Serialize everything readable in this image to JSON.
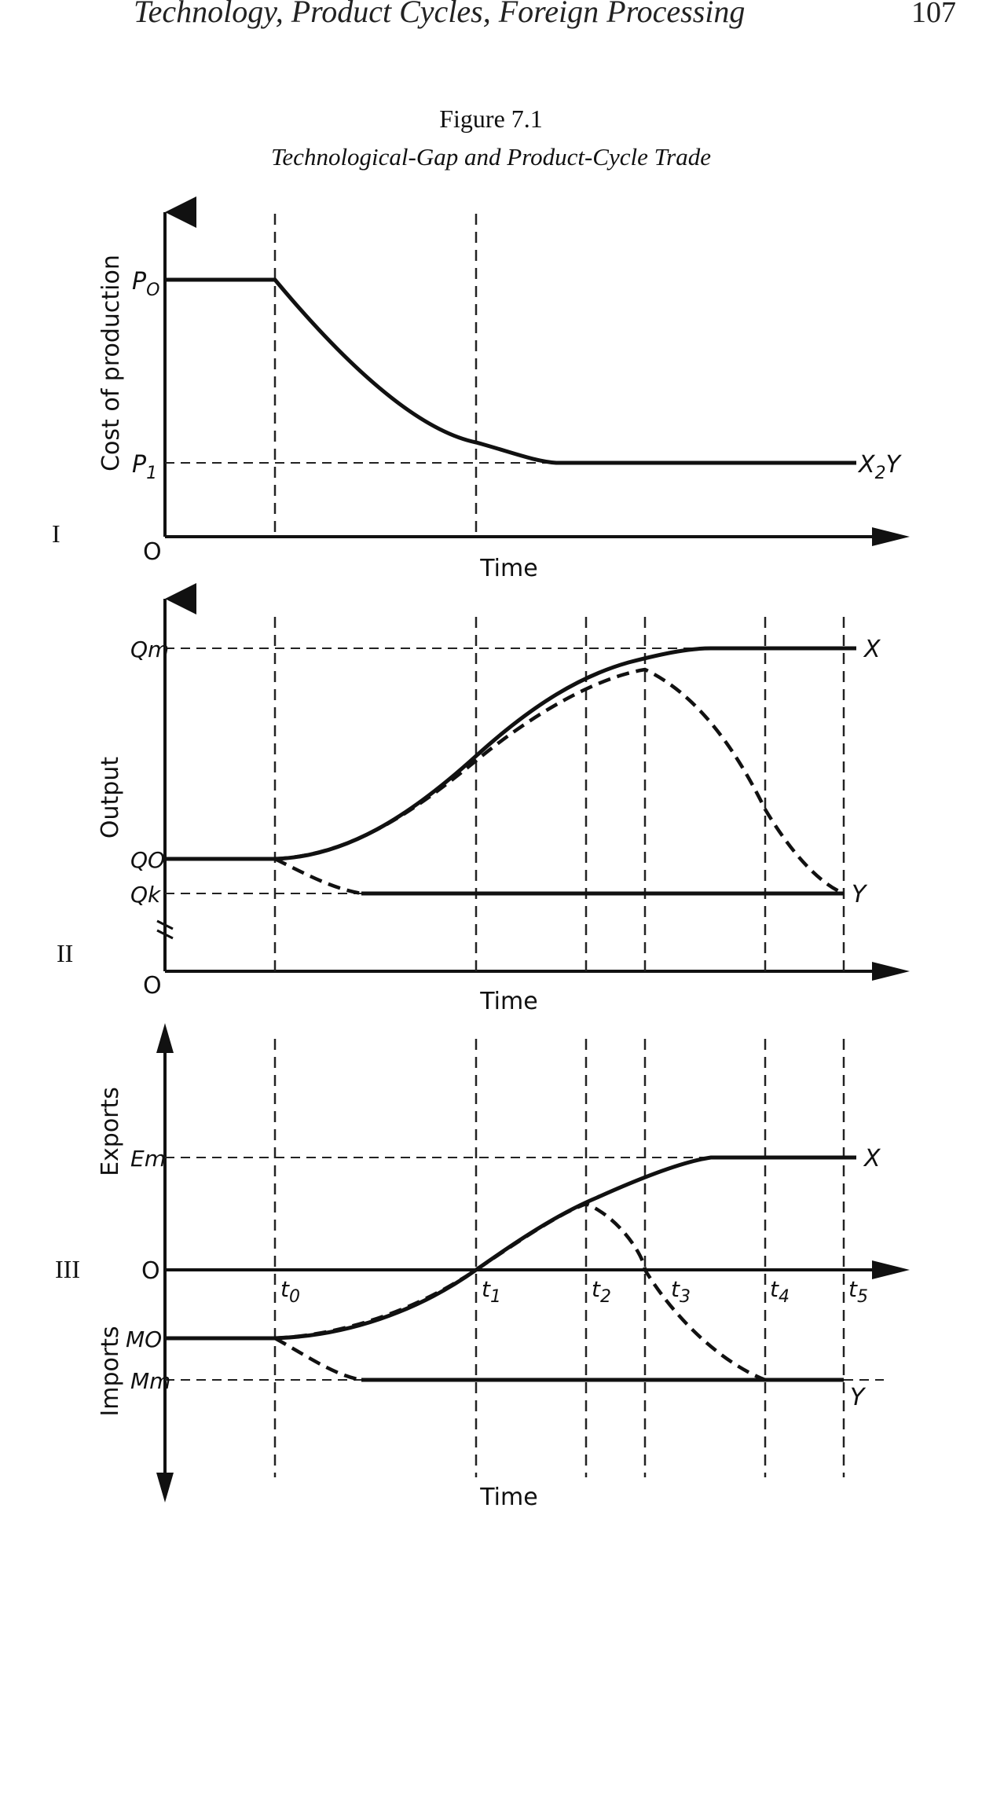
{
  "running_header": {
    "title": "Technology, Product Cycles, Foreign Processing",
    "page_number": "107"
  },
  "figure": {
    "label": "Figure 7.1",
    "caption": "Technological-Gap and Product-Cycle Trade"
  },
  "panels": {
    "I": {
      "roman": "I",
      "ylabel": "Cost of production",
      "xlabel": "Time",
      "origin": "O",
      "levels": {
        "p0": "P",
        "p0_sub": "O",
        "p1": "P",
        "p1_sub": "1"
      },
      "curve_label_x": "X",
      "curve_label_sep": "2",
      "curve_label_y": "Y"
    },
    "II": {
      "roman": "II",
      "ylabel": "Output",
      "xlabel": "Time",
      "origin": "O",
      "levels": {
        "qm": "Qm",
        "qo": "QO",
        "qk": "Qk"
      },
      "curve_label_x": "X",
      "curve_label_y": "Y"
    },
    "III": {
      "roman": "III",
      "ylabel_top": "Exports",
      "ylabel_bottom": "Imports",
      "xlabel": "Time",
      "origin": "O",
      "levels": {
        "em": "Em",
        "mo": "MO",
        "mm": "Mm"
      },
      "curve_label_x": "X",
      "curve_label_y": "Y",
      "time_marks": [
        {
          "t": "t",
          "sub": "0"
        },
        {
          "t": "t",
          "sub": "1"
        },
        {
          "t": "t",
          "sub": "2"
        },
        {
          "t": "t",
          "sub": "3"
        },
        {
          "t": "t",
          "sub": "4"
        },
        {
          "t": "t",
          "sub": "5"
        }
      ]
    }
  }
}
